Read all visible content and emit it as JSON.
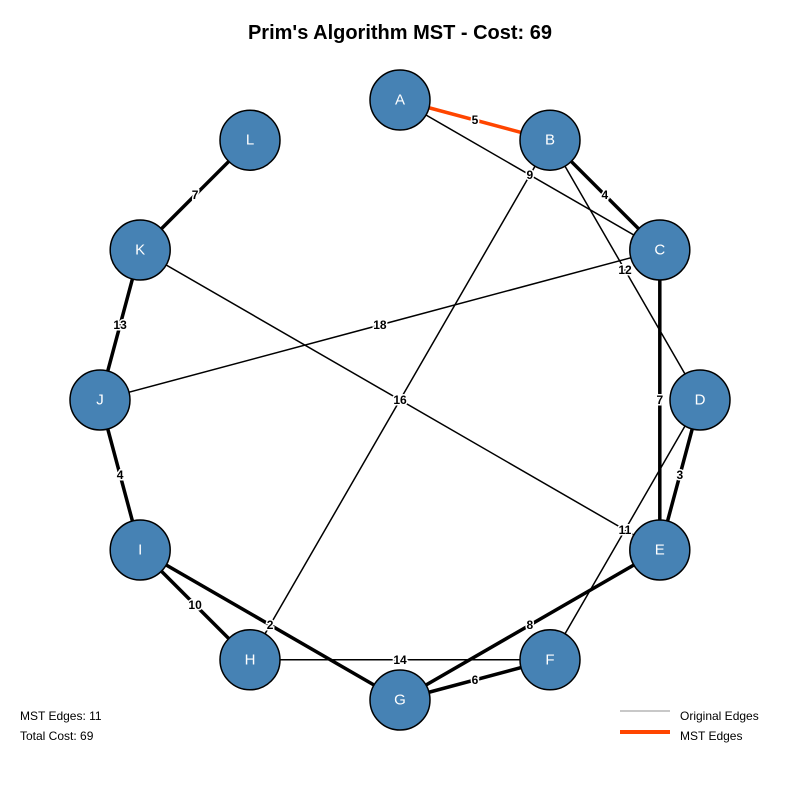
{
  "title": "Prim's Algorithm MST - Cost: 69",
  "colors": {
    "node_fill": "#4682b4",
    "node_stroke": "#000000",
    "edge": "#000000",
    "highlight_edge": "#ff4500",
    "legend_original": "#c8c8c8",
    "legend_mst": "#ff4500"
  },
  "nodes": [
    "A",
    "B",
    "C",
    "D",
    "E",
    "F",
    "G",
    "H",
    "I",
    "J",
    "K",
    "L"
  ],
  "edges": [
    {
      "from": "A",
      "to": "B",
      "weight": "5",
      "mst": true,
      "highlight": true
    },
    {
      "from": "A",
      "to": "C",
      "weight": "9",
      "mst": false
    },
    {
      "from": "B",
      "to": "C",
      "weight": "4",
      "mst": true
    },
    {
      "from": "B",
      "to": "D",
      "weight": "12",
      "mst": false
    },
    {
      "from": "B",
      "to": "H",
      "weight": "16",
      "mst": false
    },
    {
      "from": "C",
      "to": "E",
      "weight": "7",
      "mst": true
    },
    {
      "from": "C",
      "to": "J",
      "weight": "18",
      "mst": false
    },
    {
      "from": "D",
      "to": "E",
      "weight": "3",
      "mst": true
    },
    {
      "from": "D",
      "to": "F",
      "weight": "11",
      "mst": false
    },
    {
      "from": "E",
      "to": "G",
      "weight": "8",
      "mst": true
    },
    {
      "from": "E",
      "to": "K",
      "weight": "",
      "mst": false
    },
    {
      "from": "F",
      "to": "G",
      "weight": "6",
      "mst": true
    },
    {
      "from": "H",
      "to": "F",
      "weight": "14",
      "mst": false
    },
    {
      "from": "I",
      "to": "G",
      "weight": "2",
      "mst": true
    },
    {
      "from": "I",
      "to": "H",
      "weight": "10",
      "mst": true
    },
    {
      "from": "J",
      "to": "I",
      "weight": "4",
      "mst": true
    },
    {
      "from": "K",
      "to": "J",
      "weight": "13",
      "mst": true
    },
    {
      "from": "L",
      "to": "K",
      "weight": "7",
      "mst": true
    }
  ],
  "info": {
    "mst_edges": "MST Edges: 11",
    "total_cost": "Total Cost: 69"
  },
  "legend": {
    "original": "Original Edges",
    "mst": "MST Edges"
  }
}
